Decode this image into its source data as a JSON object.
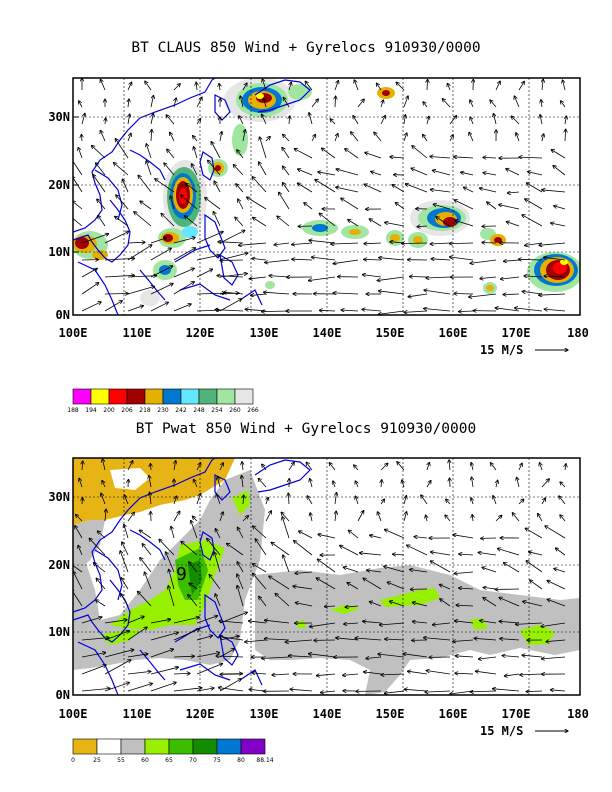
{
  "panels": [
    {
      "title": "BT CLAUS 850 Wind + Gyrelocs 910930/0000",
      "lat_labels": [
        "30N",
        "20N",
        "10N",
        "0N"
      ],
      "lon_labels": [
        "100E",
        "110E",
        "120E",
        "130E",
        "140E",
        "150E",
        "160E",
        "170E",
        "180"
      ],
      "scale_label": "15 M/S",
      "colorbar": {
        "labels": [
          "188",
          "194",
          "200",
          "206",
          "218",
          "230",
          "242",
          "248",
          "254",
          "260",
          "266"
        ],
        "colors": [
          "#ff00ff",
          "#ffff00",
          "#ff0000",
          "#a00000",
          "#e6b000",
          "#0078d2",
          "#64e6ff",
          "#50b478",
          "#a0e6a0",
          "#e6e6e6"
        ]
      }
    },
    {
      "title": "BT Pwat 850 Wind + Gyrelocs 910930/0000",
      "lat_labels": [
        "30N",
        "20N",
        "10N",
        "0N"
      ],
      "lon_labels": [
        "100E",
        "110E",
        "120E",
        "130E",
        "140E",
        "150E",
        "160E",
        "170E",
        "180"
      ],
      "scale_label": "15 M/S",
      "storm_marker": "9",
      "colorbar": {
        "labels": [
          "0",
          "25",
          "55",
          "60",
          "65",
          "70",
          "75",
          "80",
          "88.14"
        ],
        "colors": [
          "#e6b414",
          "#ffffff",
          "#c0c0c0",
          "#96f000",
          "#3cbe00",
          "#148c00",
          "#0078d2",
          "#8200c8"
        ]
      }
    }
  ]
}
